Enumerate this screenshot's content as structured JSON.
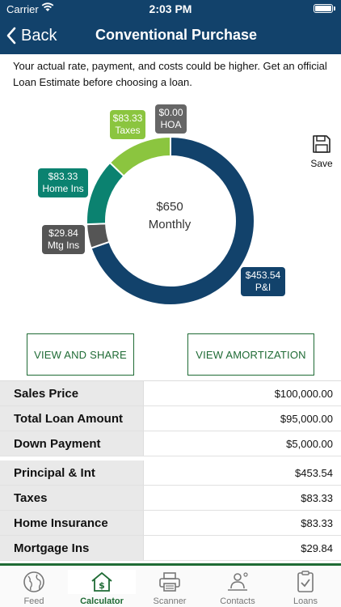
{
  "status_bar": {
    "carrier": "Carrier",
    "time": "2:03 PM"
  },
  "nav": {
    "back_label": "Back",
    "title": "Conventional Purchase"
  },
  "disclaimer": "Your actual rate, payment, and costs could be higher. Get an official Loan Estimate before choosing a loan.",
  "chart_data": {
    "type": "pie",
    "style": "donut",
    "center_amount": "$650",
    "center_label": "Monthly",
    "slices": [
      {
        "name": "P&I",
        "value": 453.54,
        "value_label": "$453.54",
        "color": "#12426b"
      },
      {
        "name": "Mtg Ins",
        "value": 29.84,
        "value_label": "$29.84",
        "color": "#555555"
      },
      {
        "name": "Home Ins",
        "value": 83.33,
        "value_label": "$83.33",
        "color": "#0b8270"
      },
      {
        "name": "Taxes",
        "value": 83.33,
        "value_label": "$83.33",
        "color": "#8bc53f"
      },
      {
        "name": "HOA",
        "value": 0.0,
        "value_label": "$0.00",
        "color": "#666666"
      }
    ]
  },
  "save": {
    "label": "Save",
    "icon": "floppy-disk-icon"
  },
  "buttons": {
    "view_share": "VIEW AND SHARE",
    "view_amortization": "VIEW AMORTIZATION"
  },
  "loan_summary": [
    {
      "label": "Sales Price",
      "value": "$100,000.00"
    },
    {
      "label": "Total Loan Amount",
      "value": "$95,000.00"
    },
    {
      "label": "Down Payment",
      "value": "$5,000.00"
    }
  ],
  "payment_breakdown": [
    {
      "label": "Principal & Int",
      "value": "$453.54"
    },
    {
      "label": "Taxes",
      "value": "$83.33"
    },
    {
      "label": "Home Insurance",
      "value": "$83.33"
    },
    {
      "label": "Mortgage Ins",
      "value": "$29.84"
    }
  ],
  "tabs": [
    {
      "label": "Feed",
      "icon": "globe-icon",
      "active": false
    },
    {
      "label": "Calculator",
      "icon": "calculator-house-icon",
      "active": true
    },
    {
      "label": "Scanner",
      "icon": "printer-icon",
      "active": false
    },
    {
      "label": "Contacts",
      "icon": "contacts-icon",
      "active": false
    },
    {
      "label": "Loans",
      "icon": "clipboard-check-icon",
      "active": false
    }
  ],
  "colors": {
    "header": "#12426b",
    "accent": "#1f6b35"
  }
}
